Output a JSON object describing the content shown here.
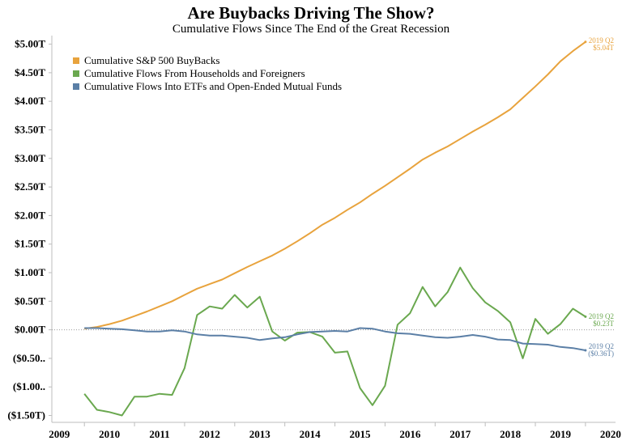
{
  "chart_data": {
    "type": "line",
    "title": "Are Buybacks Driving The Show?",
    "subtitle": "Cumulative Flows Since The End of the Great Recession",
    "xlabel": "",
    "ylabel": "",
    "xlim": [
      2008.85,
      2020.1
    ],
    "ylim": [
      -1.62,
      5.15
    ],
    "grid": false,
    "zero_line": "dotted",
    "legend_position": "top-left",
    "y_ticks": [
      {
        "value": 5.0,
        "label": "$5.00T"
      },
      {
        "value": 4.5,
        "label": "$4.50T"
      },
      {
        "value": 4.0,
        "label": "$4.00T"
      },
      {
        "value": 3.5,
        "label": "$3.50T"
      },
      {
        "value": 3.0,
        "label": "$3.00T"
      },
      {
        "value": 2.5,
        "label": "$2.50T"
      },
      {
        "value": 2.0,
        "label": "$2.00T"
      },
      {
        "value": 1.5,
        "label": "$1.50T"
      },
      {
        "value": 1.0,
        "label": "$1.00T"
      },
      {
        "value": 0.5,
        "label": "$0.50T"
      },
      {
        "value": 0.0,
        "label": "$0.00T"
      },
      {
        "value": -0.5,
        "label": "($0.50.."
      },
      {
        "value": -1.0,
        "label": "($1.00.."
      },
      {
        "value": -1.5,
        "label": "($1.50T)"
      }
    ],
    "x_ticks": [
      {
        "value": 2009,
        "label": "2009"
      },
      {
        "value": 2010,
        "label": "2010"
      },
      {
        "value": 2011,
        "label": "2011"
      },
      {
        "value": 2012,
        "label": "2012"
      },
      {
        "value": 2013,
        "label": "2013"
      },
      {
        "value": 2014,
        "label": "2014"
      },
      {
        "value": 2015,
        "label": "2015"
      },
      {
        "value": 2016,
        "label": "2016"
      },
      {
        "value": 2017,
        "label": "2017"
      },
      {
        "value": 2018,
        "label": "2018"
      },
      {
        "value": 2019,
        "label": "2019"
      },
      {
        "value": 2020,
        "label": "2020"
      }
    ],
    "x": [
      2009.5,
      2009.75,
      2010.0,
      2010.25,
      2010.5,
      2010.75,
      2011.0,
      2011.25,
      2011.5,
      2011.75,
      2012.0,
      2012.25,
      2012.5,
      2012.75,
      2013.0,
      2013.25,
      2013.5,
      2013.75,
      2014.0,
      2014.25,
      2014.5,
      2014.75,
      2015.0,
      2015.25,
      2015.5,
      2015.75,
      2016.0,
      2016.25,
      2016.5,
      2016.75,
      2017.0,
      2017.25,
      2017.5,
      2017.75,
      2018.0,
      2018.25,
      2018.5,
      2018.75,
      2019.0,
      2019.25,
      2019.5
    ],
    "series": [
      {
        "name": "Cumulative S&P 500 BuyBacks",
        "color": "#e8a33d",
        "values": [
          0.02,
          0.05,
          0.1,
          0.16,
          0.24,
          0.32,
          0.41,
          0.5,
          0.61,
          0.72,
          0.8,
          0.88,
          0.99,
          1.1,
          1.2,
          1.3,
          1.42,
          1.55,
          1.69,
          1.84,
          1.96,
          2.1,
          2.23,
          2.38,
          2.52,
          2.67,
          2.82,
          2.98,
          3.1,
          3.21,
          3.34,
          3.47,
          3.59,
          3.72,
          3.86,
          4.06,
          4.26,
          4.47,
          4.7,
          4.88,
          5.04
        ],
        "end_label_period": "2019 Q2",
        "end_label_value": "$5.04T"
      },
      {
        "name": "Cumulative Flows From Households and Foreigners",
        "color": "#6aa84f",
        "values": [
          -1.12,
          -1.4,
          -1.44,
          -1.5,
          -1.17,
          -1.17,
          -1.12,
          -1.14,
          -0.67,
          0.26,
          0.41,
          0.37,
          0.61,
          0.39,
          0.58,
          -0.03,
          -0.19,
          -0.05,
          -0.04,
          -0.12,
          -0.4,
          -0.38,
          -1.02,
          -1.32,
          -0.98,
          0.09,
          0.29,
          0.75,
          0.41,
          0.66,
          1.09,
          0.73,
          0.48,
          0.33,
          0.13,
          -0.5,
          0.19,
          -0.07,
          0.1,
          0.37,
          0.23
        ],
        "end_label_period": "2019 Q2",
        "end_label_value": "$0.23T"
      },
      {
        "name": "Cumulative Flows Into ETFs and Open-Ended Mutual Funds",
        "color": "#5b7fa6",
        "values": [
          0.03,
          0.03,
          0.02,
          0.01,
          -0.01,
          -0.03,
          -0.03,
          -0.01,
          -0.03,
          -0.08,
          -0.1,
          -0.1,
          -0.12,
          -0.14,
          -0.18,
          -0.15,
          -0.13,
          -0.08,
          -0.04,
          -0.03,
          -0.02,
          -0.03,
          0.03,
          0.02,
          -0.03,
          -0.06,
          -0.07,
          -0.1,
          -0.13,
          -0.14,
          -0.12,
          -0.09,
          -0.12,
          -0.17,
          -0.18,
          -0.24,
          -0.25,
          -0.26,
          -0.3,
          -0.32,
          -0.36
        ],
        "end_label_period": "2019 Q2",
        "end_label_value": "($0.36T)"
      }
    ]
  }
}
